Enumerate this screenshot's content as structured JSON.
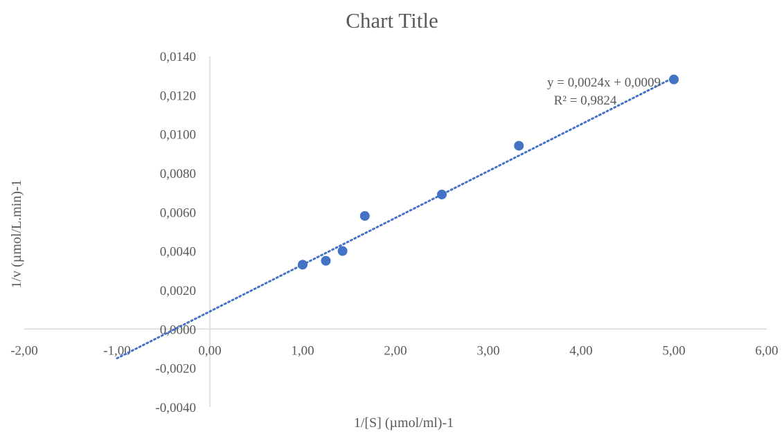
{
  "chart_data": {
    "type": "scatter",
    "title": "Chart Title",
    "xlabel": "1/[S] (µmol/ml)-1",
    "ylabel": "1/v (µmol/L.min)-1",
    "xlim": [
      -2,
      6
    ],
    "ylim": [
      -0.004,
      0.014
    ],
    "x_ticks": [
      -2,
      -1,
      0,
      1,
      2,
      3,
      4,
      5,
      6
    ],
    "x_tick_labels": [
      "-2,00",
      "-1,00",
      "0,00",
      "1,00",
      "2,00",
      "3,00",
      "4,00",
      "5,00",
      "6,00"
    ],
    "y_ticks": [
      -0.004,
      -0.002,
      0,
      0.002,
      0.004,
      0.006,
      0.008,
      0.01,
      0.012,
      0.014
    ],
    "y_tick_labels": [
      "-0,0040",
      "-0,0020",
      "0,0000",
      "0,0020",
      "0,0040",
      "0,0060",
      "0,0080",
      "0,0100",
      "0,0120",
      "0,0140"
    ],
    "grid": false,
    "legend": "none",
    "series": [
      {
        "x": [
          1.0,
          1.25,
          1.43,
          1.67,
          2.5,
          3.33,
          5.0
        ],
        "y": [
          0.0033,
          0.0035,
          0.004,
          0.0058,
          0.0069,
          0.0094,
          0.0128
        ],
        "color": "#4472c4"
      }
    ],
    "trendline": {
      "type": "linear",
      "style": "dotted",
      "color": "#4472c4",
      "slope": 0.0024,
      "intercept": 0.0009,
      "x_range": [
        -1.0,
        5.0
      ],
      "equation_label": "y = 0,0024x + 0,0009",
      "r2_label": "R² = 0,9824"
    }
  }
}
